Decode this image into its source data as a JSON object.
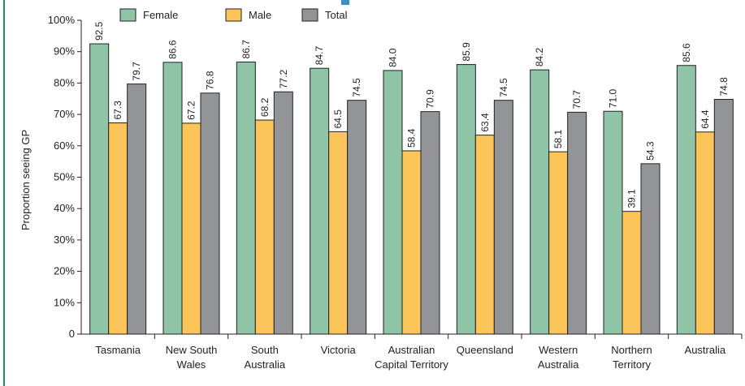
{
  "chart_data": {
    "type": "bar",
    "categories": [
      [
        "Tasmania"
      ],
      [
        "New South",
        "Wales"
      ],
      [
        "South",
        "Australia"
      ],
      [
        "Victoria"
      ],
      [
        "Australian",
        "Capital Territory"
      ],
      [
        "Queensland"
      ],
      [
        "Western",
        "Australia"
      ],
      [
        "Northern",
        "Territory"
      ],
      [
        "Australia"
      ]
    ],
    "series": [
      {
        "name": "Female",
        "color": "#8fc4a6",
        "values": [
          92.5,
          86.6,
          86.7,
          84.7,
          84.0,
          85.9,
          84.2,
          71.0,
          85.6
        ],
        "labels": [
          "92.5",
          "86.6",
          "86.7",
          "84.7",
          "84.0",
          "85.9",
          "84.2",
          "71.0",
          "85.6"
        ]
      },
      {
        "name": "Male",
        "color": "#fcc55a",
        "values": [
          67.3,
          67.2,
          68.2,
          64.5,
          58.4,
          63.4,
          58.1,
          39.1,
          64.4
        ],
        "labels": [
          "67.3",
          "67.2",
          "68.2",
          "64.5",
          "58.4",
          "63.4",
          "58.1",
          "39.1",
          "64.4"
        ]
      },
      {
        "name": "Total",
        "color": "#929497",
        "values": [
          79.7,
          76.8,
          77.2,
          74.5,
          70.9,
          74.5,
          70.7,
          54.3,
          74.8
        ],
        "labels": [
          "79.7",
          "76.8",
          "77.2",
          "74.5",
          "70.9",
          "74.5",
          "70.7",
          "54.3",
          "74.8"
        ]
      }
    ],
    "ylabel": "Proportion seeing GP",
    "xlabel": "",
    "ylim": [
      0,
      100
    ],
    "yticks": [
      0,
      10,
      20,
      30,
      40,
      50,
      60,
      70,
      80,
      90,
      100
    ],
    "ytick_labels": [
      "0",
      "10%",
      "20%",
      "30%",
      "40%",
      "50%",
      "60%",
      "70%",
      "80%",
      "90%",
      "100%"
    ],
    "legend_position": "top",
    "grid": false
  }
}
